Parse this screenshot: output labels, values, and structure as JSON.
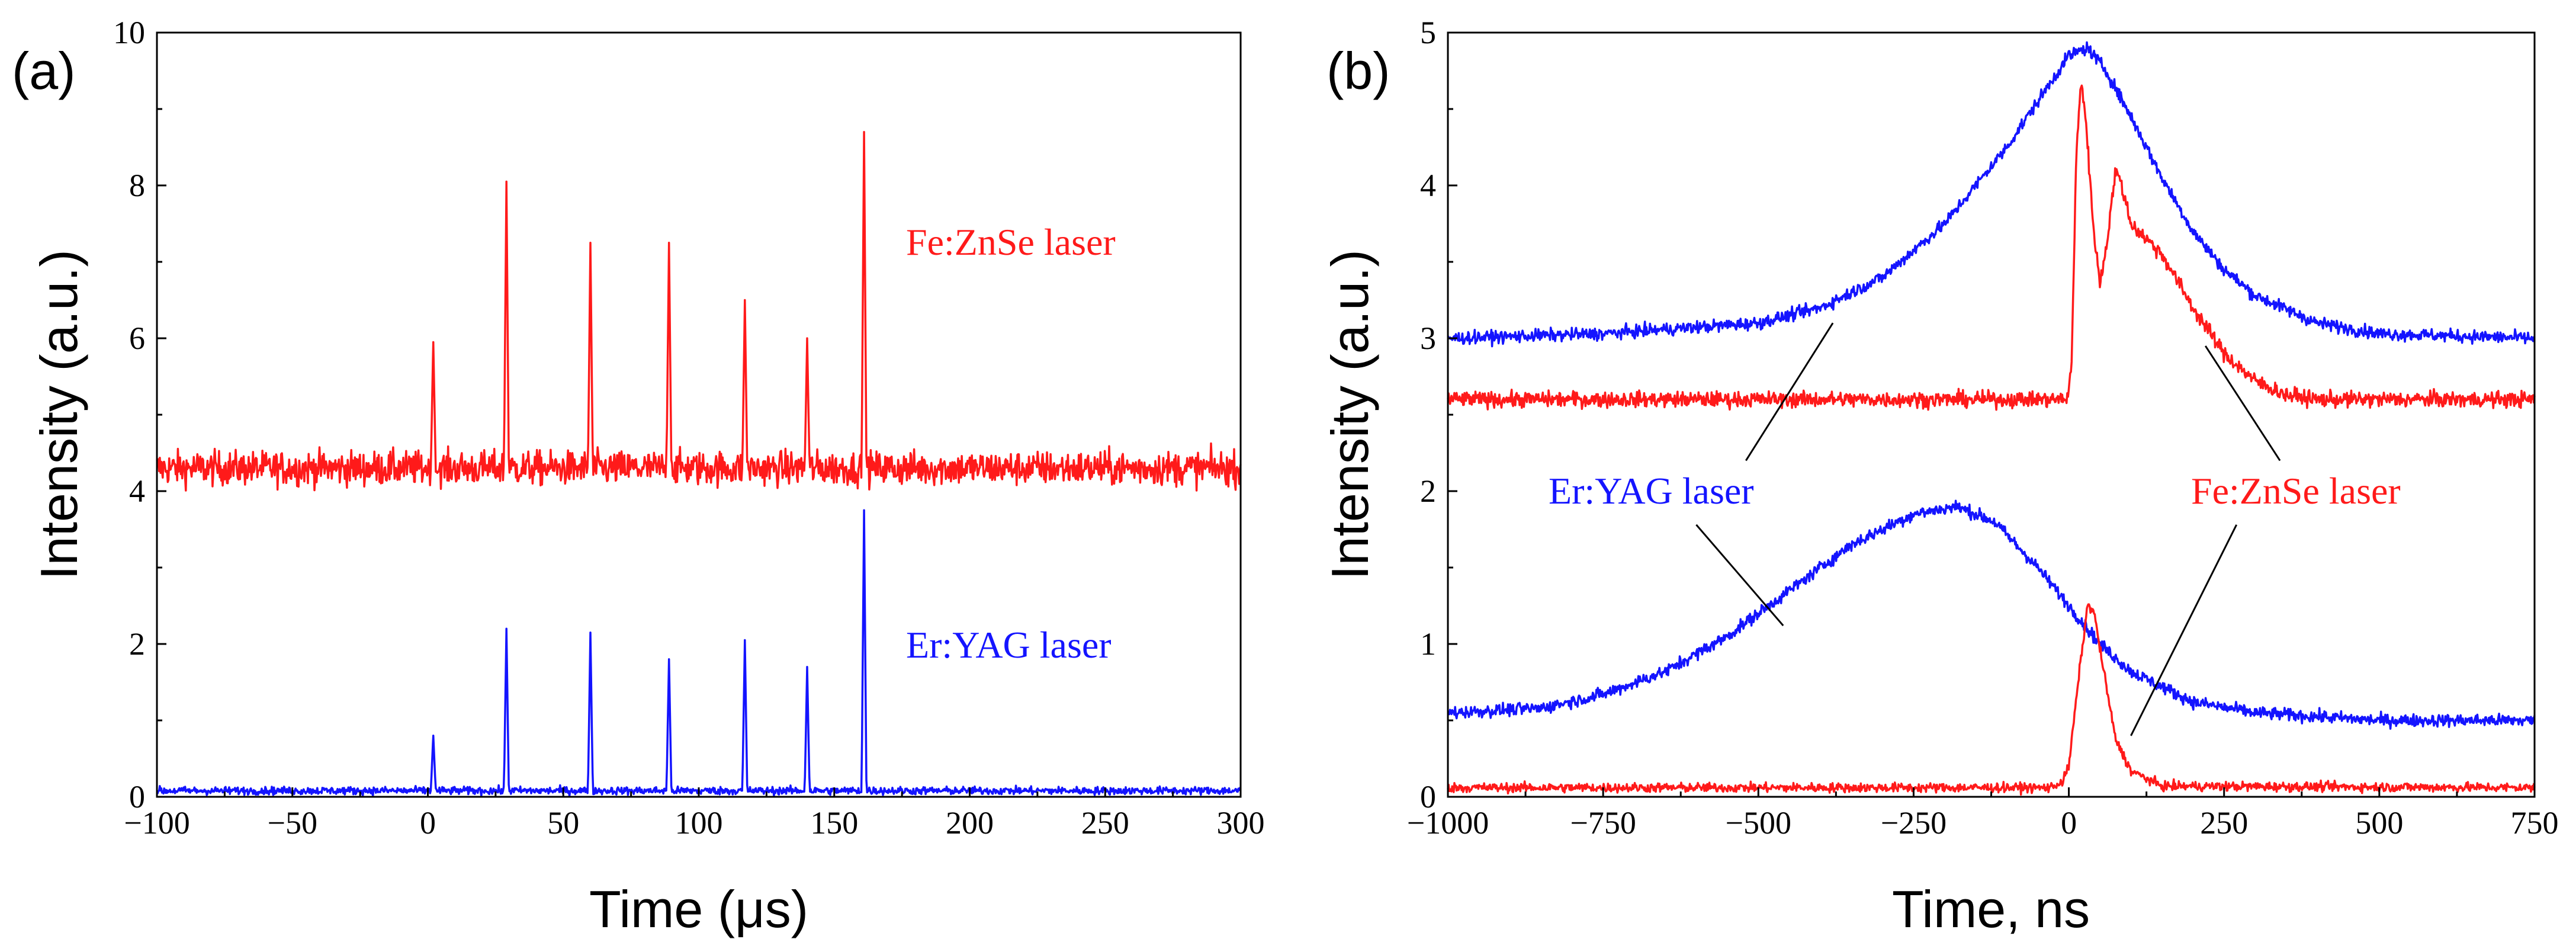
{
  "colors": {
    "red": "#ff1a1a",
    "blue": "#1414ff",
    "axis": "#000000"
  },
  "chart_data": [
    {
      "type": "line",
      "panel_label": "(a)",
      "xlabel": "Time (μs)",
      "ylabel": "Intensity (a.u.)",
      "xlim": [
        -100,
        300
      ],
      "ylim": [
        0,
        10
      ],
      "xticks": [
        -100,
        -50,
        0,
        50,
        100,
        150,
        200,
        250,
        300
      ],
      "xtick_labels": [
        "−100",
        "−50",
        "0",
        "50",
        "100",
        "150",
        "200",
        "250",
        "300"
      ],
      "yticks": [
        0,
        2,
        4,
        6,
        8,
        10
      ],
      "ytick_labels": [
        "0",
        "2",
        "4",
        "6",
        "8",
        "10"
      ],
      "series": [
        {
          "name": "Fe:ZnSe laser",
          "color": "red",
          "baseline": 4.3,
          "noise": 0.22,
          "spikes": [
            {
              "t": 2,
              "peak": 5.95
            },
            {
              "t": 29,
              "peak": 8.05
            },
            {
              "t": 60,
              "peak": 7.25
            },
            {
              "t": 89,
              "peak": 7.25
            },
            {
              "t": 117,
              "peak": 6.5
            },
            {
              "t": 140,
              "peak": 6.0
            },
            {
              "t": 161,
              "peak": 8.7
            }
          ]
        },
        {
          "name": "Er:YAG laser",
          "color": "blue",
          "baseline": 0.08,
          "noise": 0.05,
          "spikes": [
            {
              "t": 2,
              "peak": 0.8
            },
            {
              "t": 29,
              "peak": 2.2
            },
            {
              "t": 60,
              "peak": 2.15
            },
            {
              "t": 89,
              "peak": 1.8
            },
            {
              "t": 117,
              "peak": 2.05
            },
            {
              "t": 140,
              "peak": 1.7
            },
            {
              "t": 161,
              "peak": 3.75
            }
          ]
        }
      ],
      "annotations": [
        {
          "text": "Fe:ZnSe laser",
          "color": "red",
          "x": 160,
          "y": 7.2
        },
        {
          "text": "Er:YAG laser",
          "color": "blue",
          "x": 160,
          "y": 1.95
        }
      ]
    },
    {
      "type": "line",
      "panel_label": "(b)",
      "xlabel": "Time, ns",
      "ylabel": "Intensity (a.u.)",
      "xlim": [
        -1000,
        750
      ],
      "ylim": [
        0,
        5
      ],
      "xticks": [
        -1000,
        -750,
        -500,
        -250,
        0,
        250,
        500,
        750
      ],
      "xtick_labels": [
        "−1000",
        "−750",
        "−500",
        "−250",
        "0",
        "250",
        "500",
        "750"
      ],
      "yticks": [
        0,
        1,
        2,
        3,
        4,
        5
      ],
      "ytick_labels": [
        "0",
        "1",
        "2",
        "3",
        "4",
        "5"
      ],
      "series": [
        {
          "name": "Er:YAG laser (upper)",
          "color": "blue",
          "noise": 0.04,
          "points": [
            [
              -1000,
              3.0
            ],
            [
              -750,
              3.03
            ],
            [
              -500,
              3.1
            ],
            [
              -400,
              3.2
            ],
            [
              -300,
              3.4
            ],
            [
              -200,
              3.75
            ],
            [
              -100,
              4.25
            ],
            [
              -50,
              4.55
            ],
            [
              0,
              4.85
            ],
            [
              30,
              4.9
            ],
            [
              60,
              4.75
            ],
            [
              100,
              4.45
            ],
            [
              150,
              4.05
            ],
            [
              200,
              3.7
            ],
            [
              250,
              3.45
            ],
            [
              300,
              3.28
            ],
            [
              400,
              3.1
            ],
            [
              500,
              3.03
            ],
            [
              750,
              3.0
            ]
          ]
        },
        {
          "name": "Fe:ZnSe laser (upper)",
          "color": "red",
          "noise": 0.05,
          "points": [
            [
              -1000,
              2.6
            ],
            [
              -5,
              2.6
            ],
            [
              0,
              2.65
            ],
            [
              5,
              2.9
            ],
            [
              12,
              4.2
            ],
            [
              20,
              4.7
            ],
            [
              28,
              4.4
            ],
            [
              38,
              3.8
            ],
            [
              50,
              3.35
            ],
            [
              62,
              3.65
            ],
            [
              75,
              4.1
            ],
            [
              85,
              4.0
            ],
            [
              100,
              3.75
            ],
            [
              150,
              3.55
            ],
            [
              200,
              3.2
            ],
            [
              250,
              2.9
            ],
            [
              300,
              2.72
            ],
            [
              350,
              2.63
            ],
            [
              400,
              2.6
            ],
            [
              750,
              2.6
            ]
          ]
        },
        {
          "name": "Er:YAG laser (lower)",
          "color": "blue",
          "noise": 0.04,
          "points": [
            [
              -1000,
              0.55
            ],
            [
              -850,
              0.58
            ],
            [
              -750,
              0.67
            ],
            [
              -650,
              0.82
            ],
            [
              -550,
              1.05
            ],
            [
              -450,
              1.35
            ],
            [
              -350,
              1.65
            ],
            [
              -250,
              1.85
            ],
            [
              -180,
              1.9
            ],
            [
              -120,
              1.8
            ],
            [
              -50,
              1.5
            ],
            [
              0,
              1.25
            ],
            [
              50,
              1.0
            ],
            [
              100,
              0.82
            ],
            [
              200,
              0.62
            ],
            [
              300,
              0.55
            ],
            [
              500,
              0.5
            ],
            [
              750,
              0.5
            ]
          ]
        },
        {
          "name": "Fe:ZnSe laser (lower)",
          "color": "red",
          "noise": 0.03,
          "points": [
            [
              -1000,
              0.06
            ],
            [
              -30,
              0.06
            ],
            [
              -10,
              0.1
            ],
            [
              0,
              0.2
            ],
            [
              15,
              0.75
            ],
            [
              30,
              1.25
            ],
            [
              40,
              1.22
            ],
            [
              55,
              0.85
            ],
            [
              75,
              0.38
            ],
            [
              100,
              0.17
            ],
            [
              150,
              0.07
            ],
            [
              750,
              0.06
            ]
          ]
        }
      ],
      "annotations": [
        {
          "text": "Er:YAG laser",
          "color": "blue",
          "x": -580,
          "y": 1.95
        },
        {
          "text": "Fe:ZnSe laser",
          "color": "red",
          "x": 310,
          "y": 1.95
        }
      ],
      "leader_lines": [
        {
          "color": "black",
          "from": [
            -520,
            2.2
          ],
          "to": [
            -380,
            3.1
          ]
        },
        {
          "color": "black",
          "from": [
            -600,
            1.78
          ],
          "to": [
            -460,
            1.12
          ]
        },
        {
          "color": "black",
          "from": [
            340,
            2.2
          ],
          "to": [
            220,
            2.95
          ]
        },
        {
          "color": "black",
          "from": [
            270,
            1.78
          ],
          "to": [
            100,
            0.4
          ]
        }
      ]
    }
  ]
}
